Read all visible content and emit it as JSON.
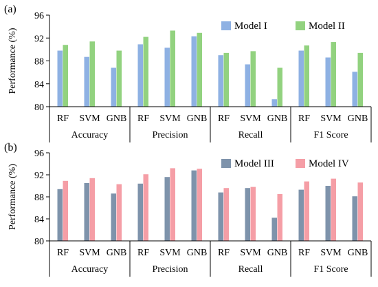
{
  "chart_data": [
    {
      "type": "bar",
      "panel_label": "(a)",
      "ylabel": "Performance (%)",
      "ylim": [
        80,
        96
      ],
      "yticks": [
        80,
        84,
        88,
        92,
        96
      ],
      "grid": false,
      "legend_position": "top-right",
      "groups": [
        {
          "label": "Accuracy",
          "categories": [
            "RF",
            "SVM",
            "GNB"
          ]
        },
        {
          "label": "Precision",
          "categories": [
            "RF",
            "SVM",
            "GNB"
          ]
        },
        {
          "label": "Recall",
          "categories": [
            "RF",
            "SVM",
            "GNB"
          ]
        },
        {
          "label": "F1 Score",
          "categories": [
            "RF",
            "SVM",
            "GNB"
          ]
        }
      ],
      "series": [
        {
          "name": "Model I",
          "color": "#8eb1e3",
          "values": [
            89.8,
            88.7,
            86.8,
            90.9,
            90.3,
            92.3,
            89.0,
            87.4,
            81.3,
            89.8,
            88.6,
            86.1
          ]
        },
        {
          "name": "Model II",
          "color": "#92d27f",
          "values": [
            90.8,
            91.4,
            89.8,
            92.2,
            93.3,
            92.9,
            89.4,
            89.7,
            86.8,
            90.7,
            91.3,
            89.4
          ]
        }
      ]
    },
    {
      "type": "bar",
      "panel_label": "(b)",
      "ylabel": "Performance (%)",
      "ylim": [
        80,
        96
      ],
      "yticks": [
        80,
        84,
        88,
        92,
        96
      ],
      "grid": false,
      "legend_position": "top-right",
      "groups": [
        {
          "label": "Accuracy",
          "categories": [
            "RF",
            "SVM",
            "GNB"
          ]
        },
        {
          "label": "Precision",
          "categories": [
            "RF",
            "SVM",
            "GNB"
          ]
        },
        {
          "label": "Recall",
          "categories": [
            "RF",
            "SVM",
            "GNB"
          ]
        },
        {
          "label": "F1 Score",
          "categories": [
            "RF",
            "SVM",
            "GNB"
          ]
        }
      ],
      "series": [
        {
          "name": "Model III",
          "color": "#7e93ab",
          "values": [
            89.4,
            90.5,
            88.6,
            90.4,
            91.6,
            92.8,
            88.8,
            89.6,
            84.2,
            89.3,
            90.0,
            88.1
          ]
        },
        {
          "name": "Model IV",
          "color": "#f59ea6",
          "values": [
            90.9,
            91.4,
            90.3,
            92.1,
            93.2,
            93.1,
            89.6,
            89.8,
            88.5,
            90.8,
            91.3,
            90.6
          ]
        }
      ]
    }
  ]
}
